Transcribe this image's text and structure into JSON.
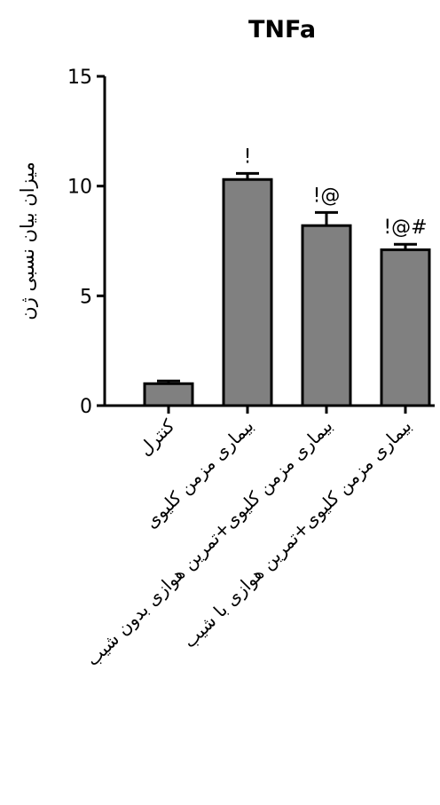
{
  "chart_data": {
    "type": "bar",
    "title": "TNFa",
    "ylabel": "میزان بیان نسبی ژن",
    "xlabel": "",
    "ylim": [
      0,
      15
    ],
    "yticks": [
      0,
      5,
      10,
      15
    ],
    "categories": [
      "کنترل",
      "بیماری مزمن کلیوی",
      "بیماری مزمن کلیوی+تمرین هوازی بدون شیب",
      "بیماری مزمن کلیوی+تمرین هوازی با شیب"
    ],
    "values": [
      1.0,
      10.3,
      8.2,
      7.1
    ],
    "errors": [
      0.12,
      0.28,
      0.6,
      0.25
    ],
    "annotations": [
      "",
      "!",
      "!@",
      "!@#"
    ],
    "bar_color": "#808080",
    "edge_color": "#000000",
    "grid": false
  }
}
